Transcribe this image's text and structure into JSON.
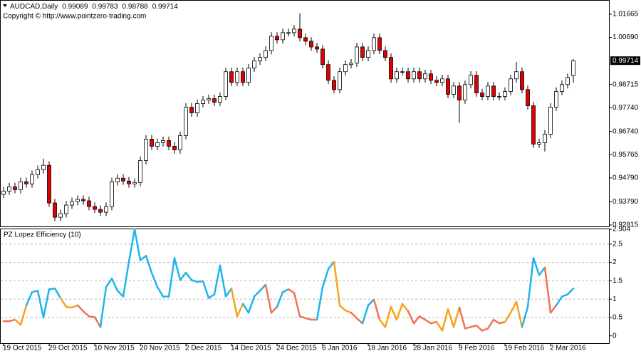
{
  "chart_data": [
    {
      "type": "candlestick",
      "title": "AUDCAD,Daily",
      "subtitle": "Copyright © http://www.pointzero-trading.com",
      "categories": [
        "19 Oct 2015",
        null,
        null,
        null,
        null,
        null,
        null,
        null,
        "29 Oct 2015",
        null,
        null,
        null,
        null,
        null,
        null,
        null,
        "10 Nov 2015",
        null,
        null,
        null,
        null,
        null,
        null,
        null,
        "20 Nov 2015",
        null,
        null,
        null,
        null,
        null,
        null,
        null,
        "2 Dec 2015",
        null,
        null,
        null,
        null,
        null,
        null,
        null,
        "14 Dec 2015",
        null,
        null,
        null,
        null,
        null,
        null,
        null,
        "24 Dec 2015",
        null,
        null,
        null,
        null,
        null,
        null,
        null,
        "6 Jan 2016",
        null,
        null,
        null,
        null,
        null,
        null,
        null,
        "18 Jan 2016",
        null,
        null,
        null,
        null,
        null,
        null,
        null,
        "28 Jan 2016",
        null,
        null,
        null,
        null,
        null,
        null,
        null,
        "9 Feb 2016",
        null,
        null,
        null,
        null,
        null,
        null,
        null,
        "19 Feb 2016",
        null,
        null,
        null,
        null,
        null,
        null,
        null,
        "2 Mar 2016",
        null,
        null,
        null,
        null
      ],
      "open": [
        0.941,
        0.9424,
        0.9442,
        0.943,
        0.9463,
        0.9454,
        0.9493,
        0.9514,
        0.9532,
        0.9374,
        0.9314,
        0.9329,
        0.9365,
        0.938,
        0.9389,
        0.9383,
        0.9359,
        0.9347,
        0.9335,
        0.9359,
        0.9463,
        0.9478,
        0.9466,
        0.9454,
        0.946,
        0.9552,
        0.9642,
        0.9612,
        0.9627,
        0.9636,
        0.9612,
        0.9597,
        0.9657,
        0.9776,
        0.9752,
        0.9791,
        0.9806,
        0.9812,
        0.9797,
        0.9821,
        0.9925,
        0.988,
        0.9925,
        0.988,
        0.994,
        0.997,
        0.9985,
        1.0014,
        1.0074,
        1.0059,
        1.0089,
        1.0089,
        1.0104,
        1.0068,
        1.0053,
        1.0029,
        1.002,
        0.9955,
        0.9889,
        0.985,
        0.9925,
        0.9955,
        0.9961,
        1.0029,
        0.9985,
        1.0014,
        1.0068,
        1.0014,
        0.9985,
        0.9895,
        0.9925,
        0.9925,
        0.9895,
        0.9925,
        0.9895,
        0.9916,
        0.9889,
        0.988,
        0.9895,
        0.983,
        0.9865,
        0.9806,
        0.9871,
        0.991,
        0.9836,
        0.9821,
        0.9865,
        0.9821,
        0.9821,
        0.9842,
        0.9895,
        0.9925,
        0.985,
        0.9782,
        0.9621,
        0.9627,
        0.9663,
        0.9776,
        0.9842,
        0.9871,
        0.99089
      ],
      "high": [
        0.9441,
        0.9459,
        0.9459,
        0.948,
        0.948,
        0.951,
        0.9531,
        0.956,
        0.9549,
        0.9391,
        0.9346,
        0.9382,
        0.9397,
        0.9406,
        0.9406,
        0.94,
        0.9376,
        0.9364,
        0.9376,
        0.948,
        0.9495,
        0.9495,
        0.9483,
        0.9477,
        0.9569,
        0.9659,
        0.9659,
        0.9644,
        0.9653,
        0.9653,
        0.9629,
        0.9674,
        0.9793,
        0.9793,
        0.9808,
        0.9823,
        0.9829,
        0.9829,
        0.9838,
        0.9942,
        0.9942,
        0.9942,
        0.9942,
        0.9957,
        0.9987,
        1.0002,
        1.0031,
        1.0091,
        1.0091,
        1.0106,
        1.0106,
        1.0121,
        1.017,
        1.0085,
        1.007,
        1.0046,
        1.0037,
        0.9972,
        0.9906,
        0.9942,
        0.9972,
        0.9978,
        1.0046,
        1.0046,
        1.0031,
        1.0085,
        1.0085,
        1.0031,
        1.0002,
        0.9942,
        0.9942,
        0.9942,
        0.9942,
        0.9942,
        0.9933,
        0.9933,
        0.9906,
        0.9912,
        0.9912,
        0.9882,
        0.9882,
        0.9888,
        0.9927,
        0.9927,
        0.9853,
        0.9882,
        0.9882,
        0.9838,
        0.9859,
        0.9912,
        0.9966,
        0.9942,
        0.9867,
        0.9799,
        0.9644,
        0.968,
        0.9793,
        0.9859,
        0.9888,
        0.9918,
        0.99783
      ],
      "low": [
        0.9394,
        0.9408,
        0.9414,
        0.9414,
        0.9438,
        0.9438,
        0.9477,
        0.9498,
        0.9358,
        0.9298,
        0.9298,
        0.9313,
        0.9349,
        0.9364,
        0.9367,
        0.9343,
        0.9331,
        0.9319,
        0.9319,
        0.9343,
        0.9447,
        0.945,
        0.9438,
        0.9438,
        0.9444,
        0.9536,
        0.9596,
        0.9596,
        0.9611,
        0.9596,
        0.9581,
        0.9581,
        0.9641,
        0.9736,
        0.9736,
        0.9775,
        0.979,
        0.9781,
        0.9781,
        0.9805,
        0.9864,
        0.9864,
        0.9864,
        0.9864,
        0.9924,
        0.9954,
        0.9969,
        0.9998,
        1.0043,
        1.0043,
        1.0073,
        1.0073,
        1.0052,
        1.0037,
        1.0013,
        1.0004,
        0.9939,
        0.9873,
        0.9834,
        0.9834,
        0.9909,
        0.9939,
        0.9945,
        0.9969,
        0.9969,
        0.9998,
        0.9998,
        0.9969,
        0.9879,
        0.9879,
        0.9909,
        0.9879,
        0.9879,
        0.9879,
        0.9879,
        0.9873,
        0.9864,
        0.9864,
        0.9814,
        0.9814,
        0.971,
        0.979,
        0.9855,
        0.982,
        0.9805,
        0.9805,
        0.9805,
        0.9805,
        0.9805,
        0.9826,
        0.9879,
        0.9834,
        0.9766,
        0.9605,
        0.9605,
        0.959,
        0.9647,
        0.976,
        0.9826,
        0.9855,
        0.98788
      ],
      "close": [
        0.9424,
        0.9442,
        0.943,
        0.9463,
        0.9454,
        0.9493,
        0.9514,
        0.9532,
        0.9374,
        0.9314,
        0.9329,
        0.9365,
        0.938,
        0.9389,
        0.9383,
        0.9359,
        0.9347,
        0.9335,
        0.9359,
        0.9463,
        0.9478,
        0.9466,
        0.9454,
        0.946,
        0.9552,
        0.9642,
        0.9612,
        0.9627,
        0.9636,
        0.9612,
        0.9597,
        0.9657,
        0.9776,
        0.9752,
        0.9791,
        0.9806,
        0.9812,
        0.9797,
        0.9821,
        0.9925,
        0.988,
        0.9925,
        0.988,
        0.994,
        0.997,
        0.9985,
        1.0014,
        1.0074,
        1.0059,
        1.0089,
        1.0089,
        1.0104,
        1.0068,
        1.0053,
        1.0029,
        1.002,
        0.9955,
        0.9889,
        0.985,
        0.9925,
        0.9955,
        0.9961,
        1.0029,
        0.9985,
        1.0014,
        1.0068,
        1.0014,
        0.9985,
        0.9895,
        0.9925,
        0.9925,
        0.9895,
        0.9925,
        0.9895,
        0.9916,
        0.9889,
        0.988,
        0.9895,
        0.983,
        0.9865,
        0.9806,
        0.9871,
        0.991,
        0.9836,
        0.9821,
        0.9865,
        0.9821,
        0.9821,
        0.9842,
        0.9895,
        0.9925,
        0.985,
        0.9782,
        0.9621,
        0.9627,
        0.9663,
        0.9776,
        0.9842,
        0.9871,
        0.9901,
        0.99714
      ],
      "up_color": "#ffffff",
      "down_color": "#e00000",
      "ylim": [
        0.92755,
        1.02231
      ],
      "yticks": [
        1.01665,
        {
          "value": 1.0069,
          "label": "1.00690"
        },
        0.98715,
        {
          "value": 0.9774,
          "label": "0.97740"
        },
        {
          "value": 0.9674,
          "label": "0.96740"
        },
        0.95765,
        {
          "value": 0.9479,
          "label": "0.94790"
        },
        {
          "value": 0.9379,
          "label": "0.93790"
        },
        0.92815
      ]
    },
    {
      "type": "line",
      "title": "PZ Lopez Efficiency (10)",
      "values": [
        0.4,
        0.4,
        0.44,
        0.3,
        0.83,
        1.19,
        1.23,
        0.5,
        1.27,
        1.29,
        1.03,
        0.79,
        0.77,
        0.83,
        0.67,
        0.53,
        0.51,
        0.24,
        1.33,
        1.56,
        1.23,
        1.07,
        2.02,
        2.9,
        2.06,
        2.18,
        1.72,
        1.33,
        1.07,
        1.07,
        2.12,
        1.52,
        1.72,
        1.52,
        1.47,
        1.49,
        1.03,
        1.13,
        1.92,
        1.07,
        1.29,
        0.53,
        0.87,
        0.63,
        1.07,
        1.23,
        1.39,
        0.63,
        0.79,
        1.19,
        1.27,
        1.17,
        0.53,
        0.48,
        0.44,
        0.44,
        1.33,
        1.82,
        2.02,
        0.83,
        0.69,
        0.63,
        0.48,
        0.34,
        0.83,
        0.99,
        0.44,
        0.24,
        0.79,
        0.44,
        0.87,
        0.67,
        0.34,
        0.53,
        0.44,
        0.34,
        0.38,
        0.14,
        0.73,
        0.24,
        0.77,
        0.2,
        0.24,
        0.28,
        0.14,
        0.2,
        0.44,
        0.34,
        0.38,
        0.63,
        0.93,
        0.24,
        0.79,
        2.12,
        1.66,
        1.86,
        0.63,
        0.83,
        1.07,
        1.13,
        1.29
      ],
      "point_colors": [
        "#f07257",
        "#f07257",
        "#f07257",
        "#f7a31c",
        "#f7a31c",
        "#1eb4ec",
        "#1eb4ec",
        "#1eb4ec",
        "#1eb4ec",
        "#1eb4ec",
        "#1eb4ec",
        "#f7a31c",
        "#f7a31c",
        "#f7a31c",
        "#f07257",
        "#f07257",
        "#f07257",
        "#f07257",
        "#1eb4ec",
        "#1eb4ec",
        "#1eb4ec",
        "#1eb4ec",
        "#1eb4ec",
        "#1eb4ec",
        "#1eb4ec",
        "#1eb4ec",
        "#1eb4ec",
        "#1eb4ec",
        "#1eb4ec",
        "#1eb4ec",
        "#1eb4ec",
        "#1eb4ec",
        "#1eb4ec",
        "#1eb4ec",
        "#1eb4ec",
        "#1eb4ec",
        "#1eb4ec",
        "#1eb4ec",
        "#1eb4ec",
        "#1eb4ec",
        "#1eb4ec",
        "#f7a31c",
        "#f7a31c",
        "#1eb4ec",
        "#1eb4ec",
        "#1eb4ec",
        "#1eb4ec",
        "#f07257",
        "#f07257",
        "#1eb4ec",
        "#1eb4ec",
        "#f07257",
        "#f07257",
        "#f07257",
        "#f07257",
        "#f07257",
        "#1eb4ec",
        "#1eb4ec",
        "#1eb4ec",
        "#f7a31c",
        "#f7a31c",
        "#f7a31c",
        "#f07257",
        "#f07257",
        "#1eb4ec",
        "#1eb4ec",
        "#f07257",
        "#f7a31c",
        "#f7a31c",
        "#f7a31c",
        "#f7a31c",
        "#f7a31c",
        "#f07257",
        "#f07257",
        "#f07257",
        "#f07257",
        "#f07257",
        "#f7a31c",
        "#f7a31c",
        "#f7a31c",
        "#f7a31c",
        "#f07257",
        "#f07257",
        "#f07257",
        "#f07257",
        "#f07257",
        "#f07257",
        "#f07257",
        "#f07257",
        "#f7a31c",
        "#f7a31c",
        "#f7a31c",
        "#1eb4ec",
        "#1eb4ec",
        "#1eb4ec",
        "#1eb4ec",
        "#f07257",
        "#f07257",
        "#1eb4ec",
        "#1eb4ec",
        "#1eb4ec"
      ],
      "ylim": [
        -0.2,
        2.904
      ],
      "yticks": [
        2.904,
        2.5,
        2,
        1.5,
        1,
        0.5,
        0
      ],
      "grid": true
    }
  ]
}
